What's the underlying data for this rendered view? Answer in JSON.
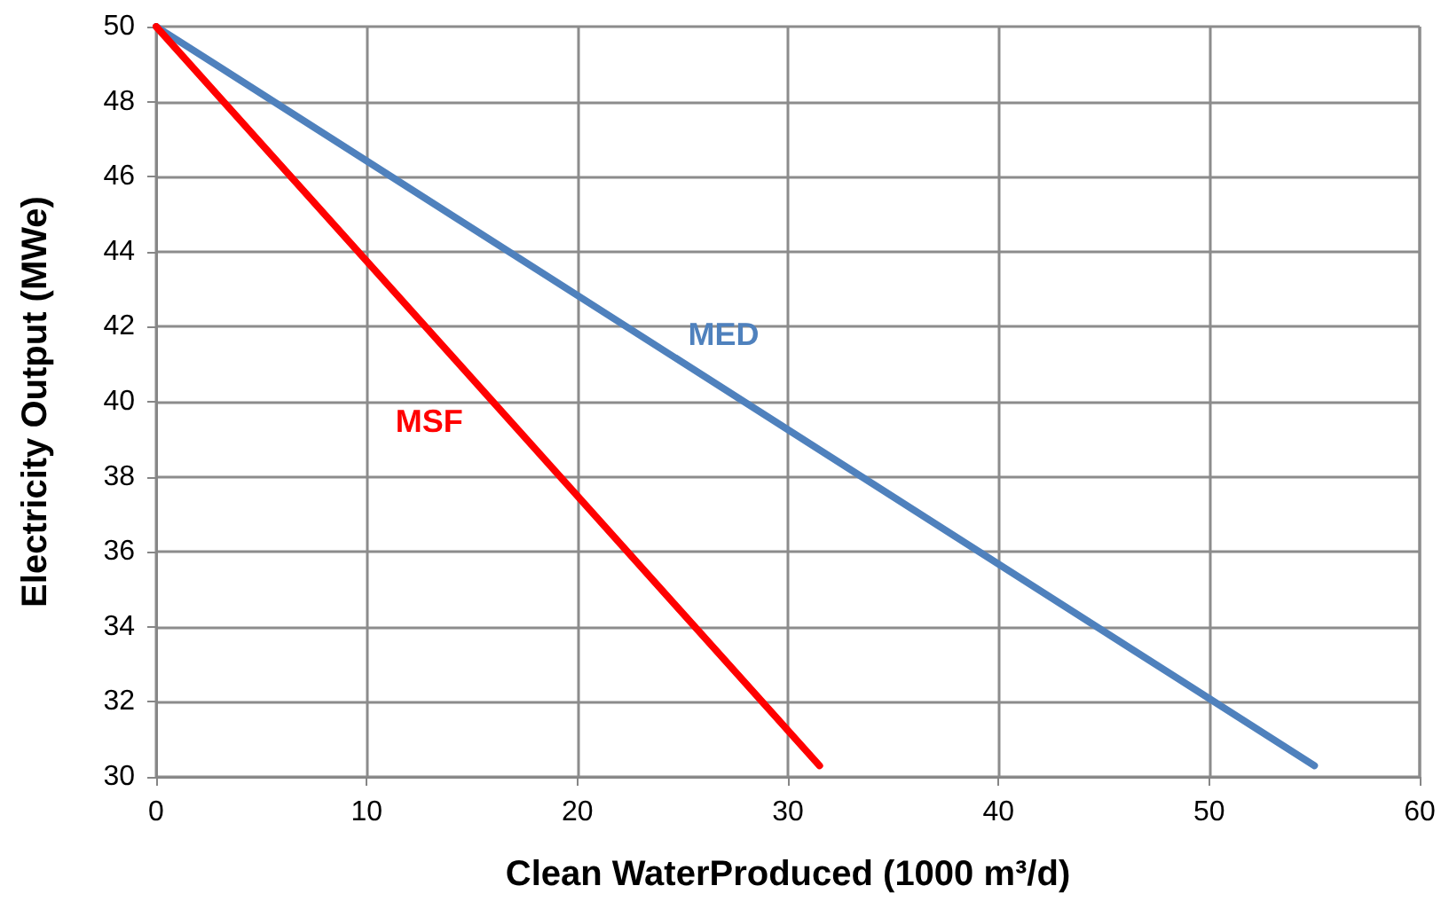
{
  "chart_data": {
    "type": "line",
    "xlabel": "Clean WaterProduced (1000 m³/d)",
    "ylabel": "Electricity Output (MWe)",
    "xlim": [
      0,
      60
    ],
    "xticks": [
      0,
      10,
      20,
      30,
      40,
      50,
      60
    ],
    "ylim": [
      30,
      50
    ],
    "yticks": [
      30,
      32,
      34,
      36,
      38,
      40,
      42,
      44,
      46,
      48,
      50
    ],
    "grid": true,
    "legend": false,
    "marker": "none",
    "line_style": "solid",
    "series": [
      {
        "name": "MED",
        "color": "#4f81bd",
        "x": [
          0,
          55
        ],
        "values": [
          50,
          30.3
        ]
      },
      {
        "name": "MSF",
        "color": "#ff0000",
        "x": [
          0,
          31.5
        ],
        "values": [
          50,
          30.3
        ]
      }
    ]
  }
}
